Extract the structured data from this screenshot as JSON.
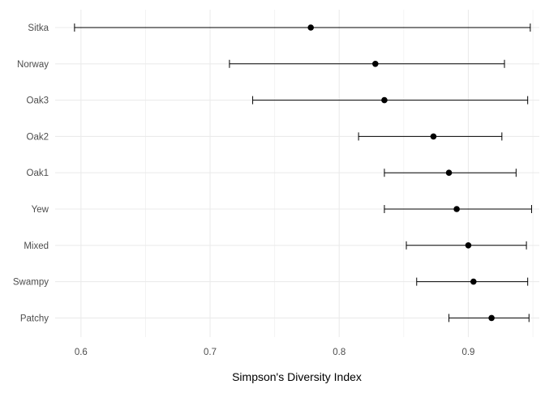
{
  "chart_data": {
    "type": "errorbar",
    "xlabel": "Simpson's Diversity Index",
    "ylabel": "",
    "xlim": [
      0.58,
      0.955
    ],
    "x_ticks": [
      0.6,
      0.7,
      0.8,
      0.9
    ],
    "x_tick_labels": [
      "0.6",
      "0.7",
      "0.8",
      "0.9"
    ],
    "grid": true,
    "categories": [
      "Sitka",
      "Norway",
      "Oak3",
      "Oak2",
      "Oak1",
      "Yew",
      "Mixed",
      "Swampy",
      "Patchy"
    ],
    "values": [
      0.778,
      0.828,
      0.835,
      0.873,
      0.885,
      0.891,
      0.9,
      0.904,
      0.918
    ],
    "lower": [
      0.595,
      0.715,
      0.733,
      0.815,
      0.835,
      0.835,
      0.852,
      0.86,
      0.885
    ],
    "upper": [
      0.948,
      0.928,
      0.946,
      0.926,
      0.937,
      0.949,
      0.945,
      0.946,
      0.947
    ]
  }
}
